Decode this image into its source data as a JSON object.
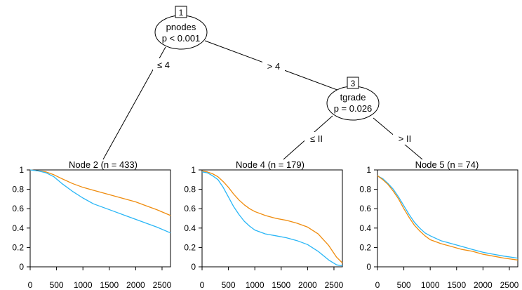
{
  "inner_nodes": [
    {
      "id": "1",
      "variable": "pnodes",
      "pvalue": "p < 0.001"
    },
    {
      "id": "3",
      "variable": "tgrade",
      "pvalue": "p = 0.026"
    }
  ],
  "edges": [
    {
      "label": "≤ 4"
    },
    {
      "label": "> 4"
    },
    {
      "label": "≤ II"
    },
    {
      "label": "> II"
    }
  ],
  "terminal_nodes": [
    {
      "title": "Node 2 (n = 433)"
    },
    {
      "title": "Node 4 (n = 179)"
    },
    {
      "title": "Node 5 (n = 74)"
    }
  ],
  "axes": {
    "x_ticks": [
      "0",
      "500",
      "1000",
      "1500",
      "2000",
      "2500"
    ],
    "y_ticks": [
      "0",
      "0.2",
      "0.4",
      "0.6",
      "0.8",
      "1"
    ]
  },
  "colors": {
    "blue": "#29b6f6",
    "orange": "#ef8c0e"
  },
  "chart_data": [
    {
      "type": "line",
      "xlim": [
        0,
        2660
      ],
      "ylim": [
        0,
        1
      ],
      "series": [
        {
          "color": "orange",
          "x": [
            0,
            150,
            300,
            450,
            600,
            800,
            1000,
            1200,
            1400,
            1600,
            1800,
            2000,
            2200,
            2400,
            2660
          ],
          "values": [
            1,
            0.99,
            0.98,
            0.95,
            0.91,
            0.86,
            0.82,
            0.79,
            0.76,
            0.73,
            0.7,
            0.67,
            0.63,
            0.59,
            0.53
          ]
        },
        {
          "color": "blue",
          "x": [
            0,
            150,
            300,
            450,
            600,
            800,
            1000,
            1200,
            1400,
            1600,
            1800,
            2000,
            2200,
            2400,
            2660
          ],
          "values": [
            1,
            0.99,
            0.97,
            0.93,
            0.86,
            0.78,
            0.71,
            0.65,
            0.61,
            0.57,
            0.53,
            0.49,
            0.45,
            0.41,
            0.35
          ]
        }
      ]
    },
    {
      "type": "line",
      "xlim": [
        0,
        2660
      ],
      "ylim": [
        0,
        1
      ],
      "series": [
        {
          "color": "orange",
          "x": [
            0,
            100,
            200,
            300,
            400,
            500,
            600,
            700,
            800,
            900,
            1000,
            1200,
            1400,
            1600,
            1800,
            2000,
            2200,
            2400,
            2550,
            2660
          ],
          "values": [
            0.99,
            0.98,
            0.96,
            0.93,
            0.88,
            0.82,
            0.75,
            0.69,
            0.64,
            0.6,
            0.57,
            0.53,
            0.5,
            0.48,
            0.45,
            0.41,
            0.34,
            0.22,
            0.1,
            0.04
          ]
        },
        {
          "color": "blue",
          "x": [
            0,
            100,
            200,
            300,
            400,
            500,
            600,
            700,
            800,
            900,
            1000,
            1200,
            1400,
            1600,
            1800,
            2000,
            2200,
            2400,
            2550,
            2660
          ],
          "values": [
            0.98,
            0.97,
            0.94,
            0.9,
            0.82,
            0.72,
            0.62,
            0.54,
            0.47,
            0.42,
            0.38,
            0.34,
            0.32,
            0.3,
            0.27,
            0.23,
            0.16,
            0.07,
            0.02,
            0.01
          ]
        }
      ]
    },
    {
      "type": "line",
      "xlim": [
        0,
        2660
      ],
      "ylim": [
        0,
        1
      ],
      "series": [
        {
          "color": "blue",
          "x": [
            0,
            100,
            200,
            300,
            400,
            500,
            600,
            700,
            800,
            900,
            1000,
            1200,
            1400,
            1600,
            1800,
            2000,
            2200,
            2400,
            2660
          ],
          "values": [
            0.94,
            0.91,
            0.86,
            0.8,
            0.72,
            0.63,
            0.54,
            0.46,
            0.4,
            0.35,
            0.32,
            0.27,
            0.24,
            0.21,
            0.18,
            0.15,
            0.13,
            0.11,
            0.09
          ]
        },
        {
          "color": "orange",
          "x": [
            0,
            100,
            200,
            300,
            400,
            500,
            600,
            700,
            800,
            900,
            1000,
            1200,
            1400,
            1600,
            1800,
            2000,
            2200,
            2400,
            2660
          ],
          "values": [
            0.94,
            0.9,
            0.85,
            0.78,
            0.7,
            0.6,
            0.51,
            0.43,
            0.37,
            0.32,
            0.28,
            0.24,
            0.21,
            0.18,
            0.16,
            0.13,
            0.11,
            0.09,
            0.07
          ]
        }
      ]
    }
  ]
}
